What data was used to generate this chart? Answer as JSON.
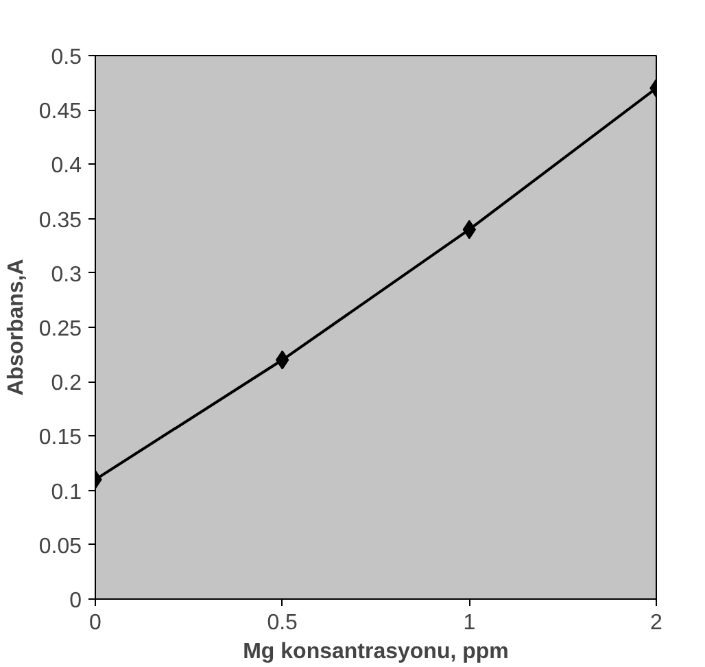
{
  "chart_data": {
    "type": "line",
    "categories": [
      "0",
      "0.5",
      "1",
      "2"
    ],
    "values": [
      0.11,
      0.22,
      0.34,
      0.47
    ],
    "color": "#000000",
    "marker": "diamond",
    "line_style": "solid",
    "xlabel": "Mg konsantrasyonu, ppm",
    "ylabel": "Absorbans,A",
    "ylim": [
      0,
      0.5
    ],
    "yticks": [
      0,
      0.05,
      0.1,
      0.15,
      0.2,
      0.25,
      0.3,
      0.35,
      0.4,
      0.45,
      0.5
    ],
    "grid": false
  }
}
